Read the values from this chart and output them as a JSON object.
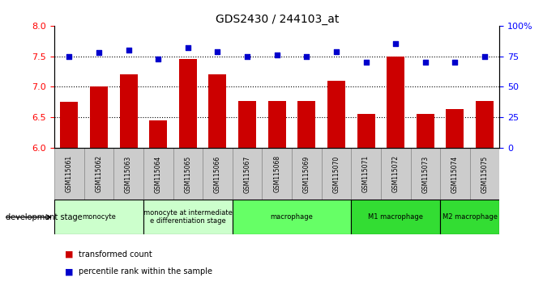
{
  "title": "GDS2430 / 244103_at",
  "samples": [
    "GSM115061",
    "GSM115062",
    "GSM115063",
    "GSM115064",
    "GSM115065",
    "GSM115066",
    "GSM115067",
    "GSM115068",
    "GSM115069",
    "GSM115070",
    "GSM115071",
    "GSM115072",
    "GSM115073",
    "GSM115074",
    "GSM115075"
  ],
  "bar_values": [
    6.75,
    7.0,
    7.2,
    6.45,
    7.46,
    7.2,
    6.77,
    6.77,
    6.77,
    7.1,
    6.55,
    7.5,
    6.55,
    6.63,
    6.77
  ],
  "dot_values": [
    75,
    78,
    80,
    73,
    82,
    79,
    75,
    76,
    75,
    79,
    70,
    85,
    70,
    70,
    75
  ],
  "ylim_left": [
    6.0,
    8.0
  ],
  "ylim_right": [
    0,
    100
  ],
  "bar_color": "#cc0000",
  "dot_color": "#0000cc",
  "background_color": "#ffffff",
  "yticks_left": [
    6.0,
    6.5,
    7.0,
    7.5,
    8.0
  ],
  "yticks_right": [
    0,
    25,
    50,
    75,
    100
  ],
  "hgrid_values": [
    6.5,
    7.0,
    7.5
  ],
  "stage_groups": [
    {
      "label": "monocyte",
      "start": 0,
      "end": 2,
      "color": "#ccffcc"
    },
    {
      "label": "monocyte at intermediate\ne differentiation stage",
      "start": 3,
      "end": 5,
      "color": "#ccffcc"
    },
    {
      "label": "macrophage",
      "start": 6,
      "end": 9,
      "color": "#66ff66"
    },
    {
      "label": "M1 macrophage",
      "start": 10,
      "end": 12,
      "color": "#33dd33"
    },
    {
      "label": "M2 macrophage",
      "start": 13,
      "end": 14,
      "color": "#33dd33"
    }
  ],
  "legend_items": [
    {
      "color": "#cc0000",
      "label": "transformed count"
    },
    {
      "color": "#0000cc",
      "label": "percentile rank within the sample"
    }
  ],
  "bar_width": 0.6,
  "tick_bg_color": "#cccccc",
  "stage_border_color": "#000000",
  "left_axis_color": "red",
  "right_axis_color": "blue"
}
